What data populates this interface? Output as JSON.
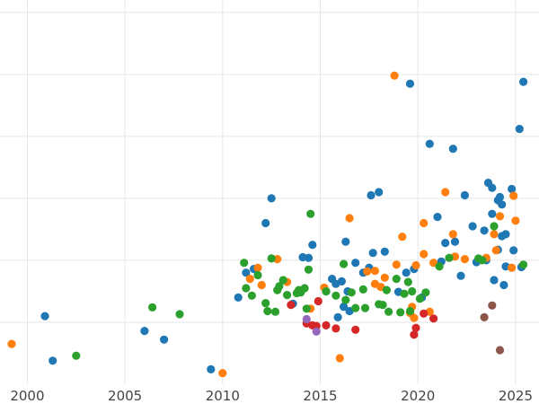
{
  "chart_data": {
    "type": "scatter",
    "title": "",
    "xlabel": "",
    "ylabel": "",
    "xlim": [
      1998.6,
      2026.2
    ],
    "ylim": [
      0,
      6.2
    ],
    "x_ticks": [
      2000,
      2005,
      2010,
      2015,
      2020,
      2025
    ],
    "x_tick_labels": [
      "2000",
      "2005",
      "2010",
      "2015",
      "2020",
      "2025"
    ],
    "y_gridlines": [
      1,
      2,
      3,
      4,
      5,
      6
    ],
    "y_tick_labels_visible": false,
    "grid": true,
    "legend": "none",
    "series": [
      {
        "color": "#1f77b4",
        "points": [
          [
            2000.9,
            1.1
          ],
          [
            2001.3,
            0.38
          ],
          [
            2006.0,
            0.86
          ],
          [
            2007.0,
            0.72
          ],
          [
            2009.4,
            0.24
          ],
          [
            2010.8,
            1.4
          ],
          [
            2011.2,
            1.8
          ],
          [
            2011.6,
            1.86
          ],
          [
            2012.2,
            2.6
          ],
          [
            2012.5,
            3.0
          ],
          [
            2013.6,
            1.3
          ],
          [
            2014.1,
            2.05
          ],
          [
            2014.4,
            2.04
          ],
          [
            2014.6,
            2.25
          ],
          [
            2015.3,
            1.5
          ],
          [
            2015.6,
            1.7
          ],
          [
            2015.8,
            1.62
          ],
          [
            2015.9,
            1.08
          ],
          [
            2016.1,
            1.66
          ],
          [
            2016.2,
            1.25
          ],
          [
            2016.3,
            2.3
          ],
          [
            2016.4,
            1.5
          ],
          [
            2016.5,
            1.18
          ],
          [
            2016.8,
            1.96
          ],
          [
            2017.2,
            1.8
          ],
          [
            2017.5,
            1.88
          ],
          [
            2017.6,
            3.05
          ],
          [
            2017.7,
            2.12
          ],
          [
            2018.0,
            3.1
          ],
          [
            2018.3,
            2.14
          ],
          [
            2019.0,
            1.49
          ],
          [
            2019.4,
            1.8
          ],
          [
            2019.6,
            4.85
          ],
          [
            2019.8,
            1.86
          ],
          [
            2020.2,
            1.4
          ],
          [
            2020.6,
            3.88
          ],
          [
            2021.0,
            2.7
          ],
          [
            2021.2,
            1.98
          ],
          [
            2021.4,
            2.28
          ],
          [
            2021.8,
            3.8
          ],
          [
            2021.9,
            2.3
          ],
          [
            2022.2,
            1.75
          ],
          [
            2022.4,
            3.05
          ],
          [
            2022.8,
            2.55
          ],
          [
            2023.0,
            1.97
          ],
          [
            2023.4,
            2.48
          ],
          [
            2023.5,
            2.0
          ],
          [
            2023.6,
            3.25
          ],
          [
            2023.8,
            3.17
          ],
          [
            2023.8,
            2.75
          ],
          [
            2023.9,
            1.68
          ],
          [
            2024.1,
            2.17
          ],
          [
            2024.1,
            2.97
          ],
          [
            2024.2,
            3.02
          ],
          [
            2024.3,
            2.9
          ],
          [
            2024.3,
            2.39
          ],
          [
            2024.5,
            2.42
          ],
          [
            2024.5,
            1.9
          ],
          [
            2024.4,
            1.6
          ],
          [
            2024.8,
            3.15
          ],
          [
            2024.9,
            2.16
          ],
          [
            2025.2,
            4.12
          ],
          [
            2025.4,
            4.88
          ],
          [
            2025.3,
            1.89
          ]
        ]
      },
      {
        "color": "#ff7f0e",
        "points": [
          [
            1999.2,
            0.65
          ],
          [
            2010.0,
            0.18
          ],
          [
            2011.4,
            1.7
          ],
          [
            2011.8,
            1.88
          ],
          [
            2012.0,
            1.6
          ],
          [
            2012.8,
            2.02
          ],
          [
            2013.3,
            1.65
          ],
          [
            2014.5,
            1.22
          ],
          [
            2015.2,
            1.56
          ],
          [
            2016.0,
            0.42
          ],
          [
            2016.5,
            2.68
          ],
          [
            2017.4,
            1.82
          ],
          [
            2017.8,
            1.62
          ],
          [
            2017.8,
            1.83
          ],
          [
            2018.1,
            1.57
          ],
          [
            2018.3,
            1.72
          ],
          [
            2018.8,
            4.98
          ],
          [
            2018.9,
            1.93
          ],
          [
            2019.2,
            2.38
          ],
          [
            2019.6,
            1.15
          ],
          [
            2019.7,
            1.25
          ],
          [
            2019.8,
            1.07
          ],
          [
            2019.9,
            1.92
          ],
          [
            2020.3,
            2.6
          ],
          [
            2020.3,
            2.1
          ],
          [
            2020.6,
            1.17
          ],
          [
            2020.8,
            1.96
          ],
          [
            2021.4,
            3.1
          ],
          [
            2021.8,
            2.42
          ],
          [
            2021.9,
            2.06
          ],
          [
            2022.4,
            2.02
          ],
          [
            2023.5,
            2.04
          ],
          [
            2023.9,
            2.42
          ],
          [
            2024.0,
            2.16
          ],
          [
            2024.2,
            2.71
          ],
          [
            2024.8,
            1.88
          ],
          [
            2024.9,
            3.04
          ],
          [
            2025.0,
            2.64
          ]
        ]
      },
      {
        "color": "#2ca02c",
        "points": [
          [
            2002.5,
            0.46
          ],
          [
            2006.4,
            1.24
          ],
          [
            2007.8,
            1.13
          ],
          [
            2011.1,
            1.96
          ],
          [
            2011.2,
            1.55
          ],
          [
            2011.5,
            1.43
          ],
          [
            2011.8,
            1.76
          ],
          [
            2012.2,
            1.31
          ],
          [
            2012.3,
            1.18
          ],
          [
            2012.5,
            2.03
          ],
          [
            2012.7,
            1.17
          ],
          [
            2012.8,
            1.52
          ],
          [
            2012.9,
            1.58
          ],
          [
            2013.1,
            1.68
          ],
          [
            2013.3,
            1.44
          ],
          [
            2013.8,
            1.47
          ],
          [
            2013.9,
            1.52
          ],
          [
            2014.0,
            1.48
          ],
          [
            2014.2,
            1.55
          ],
          [
            2014.3,
            1.22
          ],
          [
            2014.4,
            1.85
          ],
          [
            2014.5,
            2.75
          ],
          [
            2015.3,
            1.5
          ],
          [
            2015.8,
            1.43
          ],
          [
            2016.2,
            1.94
          ],
          [
            2016.3,
            1.36
          ],
          [
            2016.6,
            1.48
          ],
          [
            2016.8,
            1.23
          ],
          [
            2017.2,
            1.53
          ],
          [
            2017.3,
            1.23
          ],
          [
            2018.0,
            1.29
          ],
          [
            2018.2,
            1.28
          ],
          [
            2018.4,
            1.52
          ],
          [
            2018.5,
            1.17
          ],
          [
            2018.9,
            1.7
          ],
          [
            2019.1,
            1.16
          ],
          [
            2019.3,
            1.46
          ],
          [
            2019.5,
            1.65
          ],
          [
            2019.6,
            1.18
          ],
          [
            2019.7,
            1.5
          ],
          [
            2020.1,
            1.38
          ],
          [
            2020.4,
            1.48
          ],
          [
            2021.1,
            1.9
          ],
          [
            2021.6,
            2.04
          ],
          [
            2023.1,
            2.03
          ],
          [
            2023.3,
            2.0
          ],
          [
            2023.9,
            2.55
          ],
          [
            2025.4,
            1.93
          ]
        ]
      },
      {
        "color": "#d62728",
        "points": [
          [
            2013.5,
            1.28
          ],
          [
            2014.3,
            0.98
          ],
          [
            2014.6,
            0.95
          ],
          [
            2014.8,
            0.94
          ],
          [
            2014.9,
            1.34
          ],
          [
            2015.3,
            0.95
          ],
          [
            2015.8,
            0.9
          ],
          [
            2016.8,
            0.88
          ],
          [
            2019.8,
            0.8
          ],
          [
            2019.9,
            0.91
          ],
          [
            2020.3,
            1.14
          ],
          [
            2020.8,
            1.06
          ]
        ]
      },
      {
        "color": "#9467bd",
        "points": [
          [
            2014.3,
            1.05
          ],
          [
            2014.8,
            0.85
          ]
        ]
      },
      {
        "color": "#8c564b",
        "points": [
          [
            2023.4,
            1.08
          ],
          [
            2023.8,
            1.27
          ],
          [
            2024.2,
            0.55
          ]
        ]
      }
    ]
  }
}
